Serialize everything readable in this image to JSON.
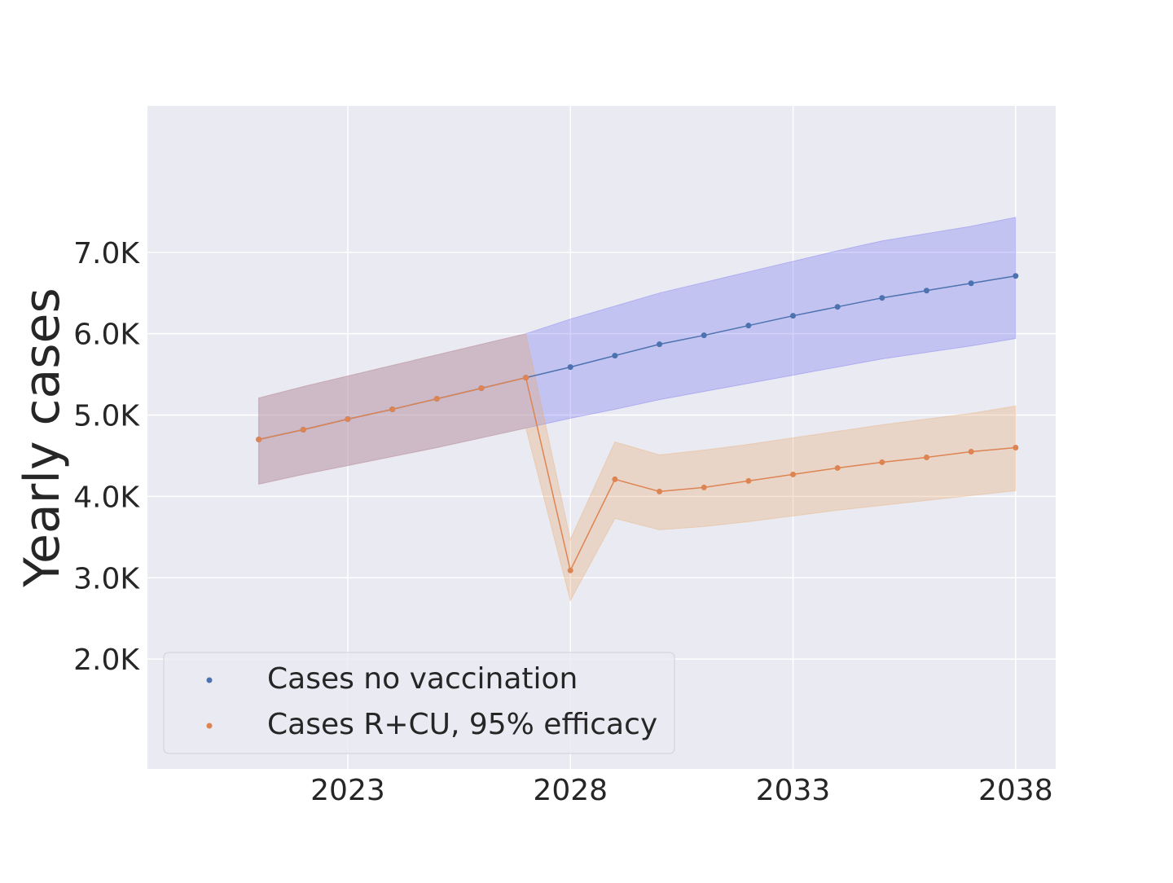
{
  "chart_data": {
    "type": "line",
    "title": "",
    "xlabel": "",
    "ylabel": "Yearly cases",
    "x": [
      2021,
      2022,
      2023,
      2024,
      2025,
      2026,
      2027,
      2028,
      2029,
      2030,
      2031,
      2032,
      2033,
      2034,
      2035,
      2036,
      2037,
      2038
    ],
    "xlim": [
      2018.5,
      2038.9
    ],
    "ylim": [
      650,
      8800
    ],
    "x_ticks": [
      2023,
      2028,
      2033,
      2038
    ],
    "x_tick_labels": [
      "2023",
      "2028",
      "2033",
      "2038"
    ],
    "y_ticks": [
      2000,
      3000,
      4000,
      5000,
      6000,
      7000
    ],
    "y_tick_labels": [
      "2.0K",
      "3.0K",
      "4.0K",
      "5.0K",
      "6.0K",
      "7.0K"
    ],
    "grid": true,
    "legend_position": "lower-left",
    "series": [
      {
        "name": "Cases no vaccination",
        "color": "#4c72b0",
        "band_color": "#6a6af0",
        "values": [
          4700,
          4820,
          4950,
          5070,
          5200,
          5330,
          5460,
          5590,
          5730,
          5870,
          5980,
          6100,
          6220,
          6330,
          6440,
          6530,
          6620,
          6710
        ],
        "lower": [
          4150,
          4270,
          4380,
          4490,
          4600,
          4720,
          4840,
          4960,
          5070,
          5190,
          5290,
          5390,
          5490,
          5590,
          5690,
          5770,
          5850,
          5940
        ],
        "upper": [
          5210,
          5350,
          5480,
          5610,
          5740,
          5870,
          6000,
          6180,
          6340,
          6500,
          6630,
          6760,
          6890,
          7020,
          7140,
          7230,
          7320,
          7430
        ]
      },
      {
        "name": "Cases R+CU, 95% efficacy",
        "color": "#dd8452",
        "band_color": "#e8a767",
        "values": [
          4700,
          4820,
          4950,
          5070,
          5200,
          5330,
          5460,
          3090,
          4210,
          4060,
          4110,
          4190,
          4270,
          4350,
          4420,
          4480,
          4550,
          4600
        ],
        "lower": [
          4150,
          4270,
          4380,
          4490,
          4600,
          4720,
          4840,
          2720,
          3730,
          3590,
          3630,
          3690,
          3760,
          3830,
          3890,
          3950,
          4010,
          4070
        ],
        "upper": [
          5210,
          5350,
          5480,
          5610,
          5740,
          5870,
          6000,
          3470,
          4670,
          4510,
          4570,
          4640,
          4720,
          4800,
          4880,
          4950,
          5020,
          5110
        ]
      }
    ]
  }
}
